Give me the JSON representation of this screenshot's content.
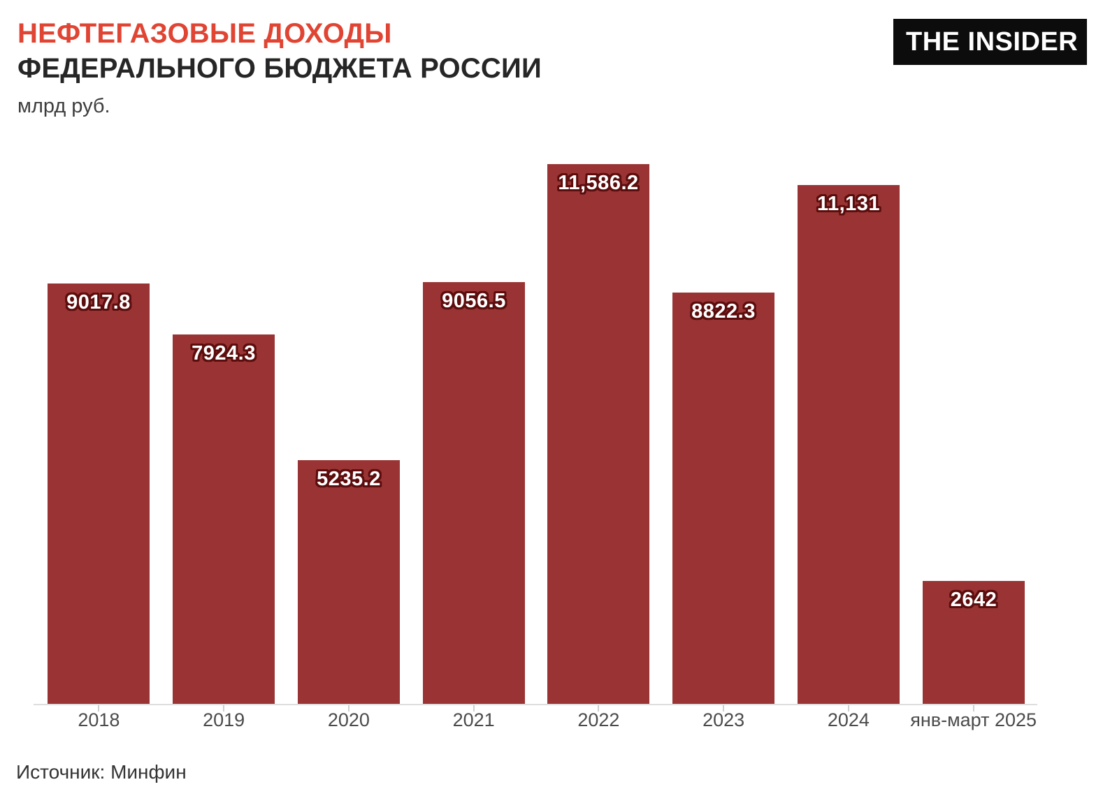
{
  "header": {
    "title_line1": "НЕФТЕГАЗОВЫЕ ДОХОДЫ",
    "title_line2": "ФЕДЕРАЛЬНОГО БЮДЖЕТА РОССИИ",
    "subtitle": "млрд руб.",
    "logo_text": "THE INSIDER"
  },
  "footer": {
    "source": "Источник: Минфин"
  },
  "colors": {
    "accent_red": "#e04433",
    "bar_fill": "#9a3434",
    "value_halo": "#5c0d0d",
    "title_dark": "#262626",
    "axis_line": "#dedede",
    "tick_label": "#4b4b4b",
    "logo_bg": "#0c0c0c",
    "logo_fg": "#ffffff"
  },
  "chart_data": {
    "type": "bar",
    "title": "Нефтегазовые доходы федерального бюджета России",
    "ylabel": "млрд руб.",
    "categories": [
      "2018",
      "2019",
      "2020",
      "2021",
      "2022",
      "2023",
      "2024",
      "янв-март 2025"
    ],
    "values": [
      9017.8,
      7924.3,
      5235.2,
      9056.5,
      11586.2,
      8822.3,
      11131,
      2642
    ],
    "value_labels": [
      "9017.8",
      "7924.3",
      "5235.2",
      "9056.5",
      "11,586.2",
      "8822.3",
      "11,131",
      "2642"
    ],
    "ylim": [
      0,
      11586.2
    ],
    "grid": false,
    "legend": false,
    "source": "Минфин"
  }
}
